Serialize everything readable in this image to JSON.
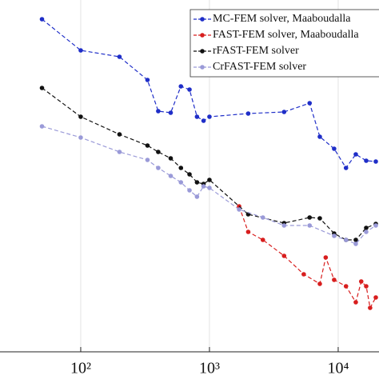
{
  "chart_data": {
    "type": "line",
    "xscale": "log",
    "grid": true,
    "legend": "upper right",
    "xlim": [
      23.6,
      20750
    ],
    "ylim": [
      0,
      440
    ],
    "xticks": [
      {
        "value": 100,
        "label": "10²"
      },
      {
        "value": 1000,
        "label": "10³"
      },
      {
        "value": 10000,
        "label": "10⁴"
      }
    ],
    "series": [
      {
        "name": "MC-FEM solver, Maaboudalla",
        "color": "#1f2ec8",
        "x": [
          50,
          100,
          200,
          330,
          400,
          500,
          600,
          700,
          800,
          900,
          1000,
          2000,
          3800,
          6000,
          7200,
          9300,
          11500,
          13700,
          16500,
          19600
        ],
        "values": [
          416,
          377,
          369,
          340,
          301,
          299,
          332,
          328,
          294,
          289,
          294,
          298,
          300,
          311,
          269,
          254,
          230,
          247,
          239,
          238
        ]
      },
      {
        "name": "FAST-FEM solver, Maaboudalla",
        "color": "#d81e1e",
        "x": [
          1700,
          2000,
          2600,
          3800,
          5400,
          7200,
          8000,
          9300,
          11500,
          13700,
          15100,
          16500,
          17700,
          19600
        ],
        "values": [
          182,
          150,
          140,
          120,
          97,
          85,
          118,
          90,
          82,
          62,
          88,
          82,
          55,
          68
        ]
      },
      {
        "name": "rFAST-FEM solver",
        "color": "#111111",
        "x": [
          50,
          100,
          200,
          330,
          400,
          500,
          600,
          700,
          800,
          900,
          1000,
          2000,
          3800,
          6000,
          7200,
          9300,
          11500,
          13700,
          16500,
          19600
        ],
        "values": [
          330,
          294,
          272,
          258,
          250,
          242,
          230,
          222,
          212,
          210,
          215,
          172,
          161,
          168,
          167,
          148,
          140,
          140,
          155,
          160
        ]
      },
      {
        "name": "CrFAST-FEM solver",
        "color": "#9a9ad8",
        "x": [
          50,
          100,
          200,
          330,
          400,
          500,
          600,
          700,
          800,
          900,
          1000,
          1700,
          2600,
          3800,
          6000,
          9300,
          11500,
          13700,
          16500,
          19600
        ],
        "values": [
          282,
          268,
          250,
          240,
          230,
          220,
          212,
          202,
          194,
          207,
          205,
          178,
          168,
          158,
          158,
          145,
          140,
          135,
          150,
          158
        ]
      }
    ]
  }
}
